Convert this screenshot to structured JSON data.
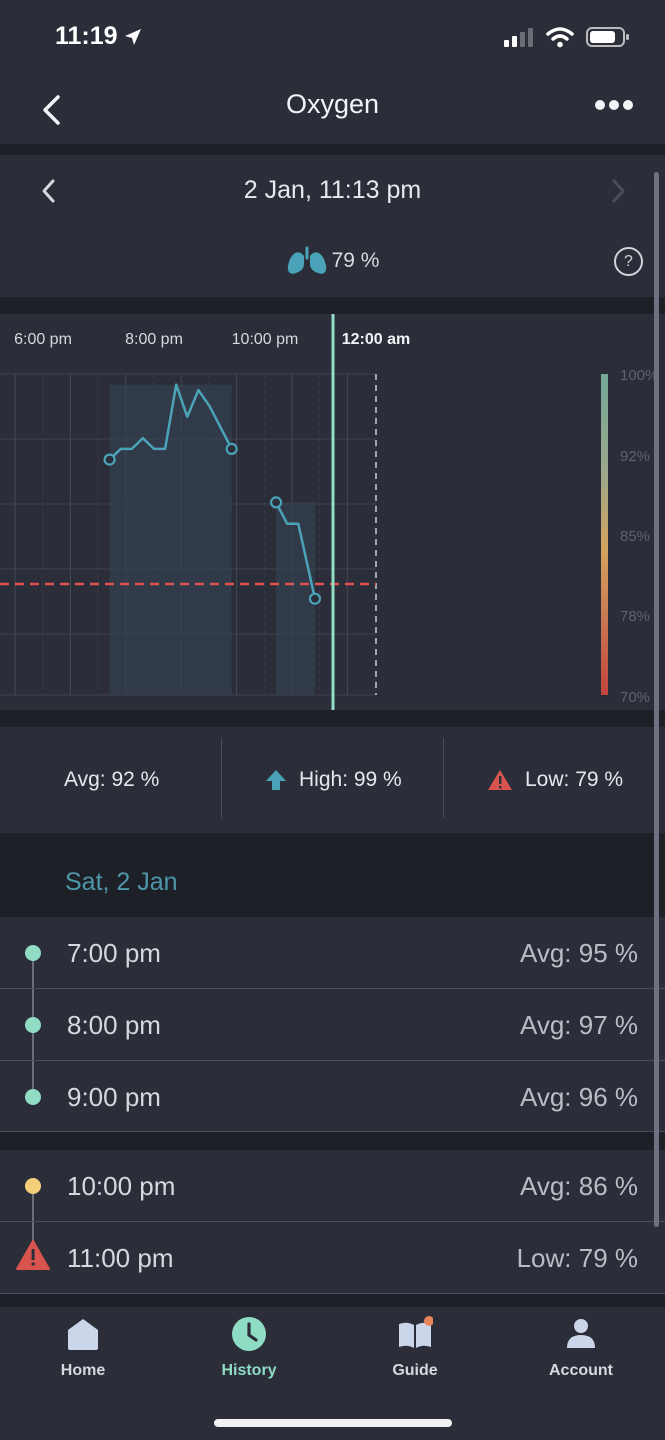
{
  "status_bar": {
    "time": "11:19"
  },
  "nav": {
    "title": "Oxygen"
  },
  "date_header": {
    "date": "2 Jan, 11:13 pm",
    "current_value": "79 %"
  },
  "chart_data": {
    "type": "line",
    "x_tick_labels": [
      "6:00 pm",
      "8:00 pm",
      "10:00 pm",
      "12:00 am"
    ],
    "y_tick_labels": [
      "100%",
      "92%",
      "85%",
      "78%",
      "70%"
    ],
    "ylim": [
      70,
      100
    ],
    "threshold": 80,
    "series": [
      {
        "points": [
          [
            19.2,
            92
          ],
          [
            19.4,
            93
          ],
          [
            19.6,
            93
          ],
          [
            19.8,
            94
          ],
          [
            20.0,
            93
          ],
          [
            20.2,
            93
          ],
          [
            20.4,
            99
          ],
          [
            20.6,
            96
          ],
          [
            20.8,
            98.5
          ],
          [
            21.0,
            97
          ],
          [
            21.2,
            95
          ],
          [
            21.4,
            93
          ]
        ]
      },
      {
        "points": [
          [
            22.2,
            88
          ],
          [
            22.4,
            86
          ],
          [
            22.6,
            86
          ],
          [
            22.9,
            79
          ]
        ]
      }
    ],
    "colors": {
      "line": "#4aa3b8",
      "threshold": "#e0504f",
      "cursor": "#8fe0c3"
    }
  },
  "stats": {
    "avg": "Avg: 92 %",
    "high": "High: 99 %",
    "low": "Low: 79 %"
  },
  "section": {
    "date": "Sat, 2 Jan"
  },
  "group1": [
    {
      "time": "7:00 pm",
      "value": "Avg: 95 %",
      "status": "#8fdcc4"
    },
    {
      "time": "8:00 pm",
      "value": "Avg: 97 %",
      "status": "#8fdcc4"
    },
    {
      "time": "9:00 pm",
      "value": "Avg: 96 %",
      "status": "#8fdcc4"
    }
  ],
  "group2": [
    {
      "time": "10:00 pm",
      "value": "Avg: 86 %",
      "status": "#f4cf7a"
    },
    {
      "time": "11:00 pm",
      "value": "Low: 79 %",
      "status": "#d9534f"
    }
  ],
  "tabs": [
    {
      "label": "Home",
      "icon": "home-icon"
    },
    {
      "label": "History",
      "icon": "clock-icon",
      "active_color": "#8fdcc4"
    },
    {
      "label": "Guide",
      "icon": "book-icon"
    },
    {
      "label": "Account",
      "icon": "person-icon"
    }
  ]
}
